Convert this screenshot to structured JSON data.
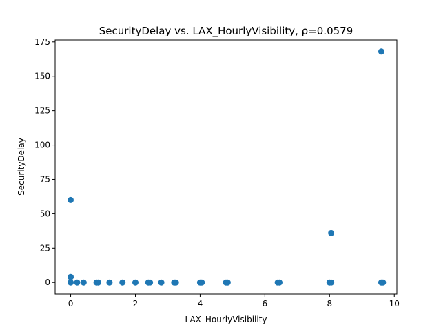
{
  "chart_data": {
    "type": "scatter",
    "title": "SecurityDelay vs. LAX_HourlyVisibility, ρ=0.0579",
    "xlabel": "LAX_HourlyVisibility",
    "ylabel": "SecurityDelay",
    "xlim": [
      -0.48,
      10.08
    ],
    "ylim": [
      -8.4,
      176.4
    ],
    "xticks": [
      0,
      2,
      4,
      6,
      8,
      10
    ],
    "yticks": [
      0,
      25,
      50,
      75,
      100,
      125,
      150,
      175
    ],
    "xtick_labels": [
      "0",
      "2",
      "4",
      "6",
      "8",
      "10"
    ],
    "ytick_labels": [
      "0",
      "25",
      "50",
      "75",
      "100",
      "125",
      "150",
      "175"
    ],
    "grid": false,
    "marker_color": "#1f77b4",
    "points": [
      {
        "x": 0,
        "y": 0
      },
      {
        "x": 0,
        "y": 4
      },
      {
        "x": 0,
        "y": 60
      },
      {
        "x": 0.2,
        "y": 0
      },
      {
        "x": 0.4,
        "y": 0
      },
      {
        "x": 0.8,
        "y": 0
      },
      {
        "x": 0.85,
        "y": 0
      },
      {
        "x": 1.2,
        "y": 0
      },
      {
        "x": 1.6,
        "y": 0
      },
      {
        "x": 2.0,
        "y": 0
      },
      {
        "x": 2.4,
        "y": 0
      },
      {
        "x": 2.45,
        "y": 0
      },
      {
        "x": 2.8,
        "y": 0
      },
      {
        "x": 3.2,
        "y": 0
      },
      {
        "x": 3.25,
        "y": 0
      },
      {
        "x": 4.0,
        "y": 0
      },
      {
        "x": 4.05,
        "y": 0
      },
      {
        "x": 4.8,
        "y": 0
      },
      {
        "x": 4.85,
        "y": 0
      },
      {
        "x": 6.4,
        "y": 0
      },
      {
        "x": 6.45,
        "y": 0
      },
      {
        "x": 8.0,
        "y": 0
      },
      {
        "x": 8.05,
        "y": 0
      },
      {
        "x": 8.05,
        "y": 36
      },
      {
        "x": 9.6,
        "y": 0
      },
      {
        "x": 9.65,
        "y": 0
      },
      {
        "x": 9.6,
        "y": 168
      }
    ]
  }
}
